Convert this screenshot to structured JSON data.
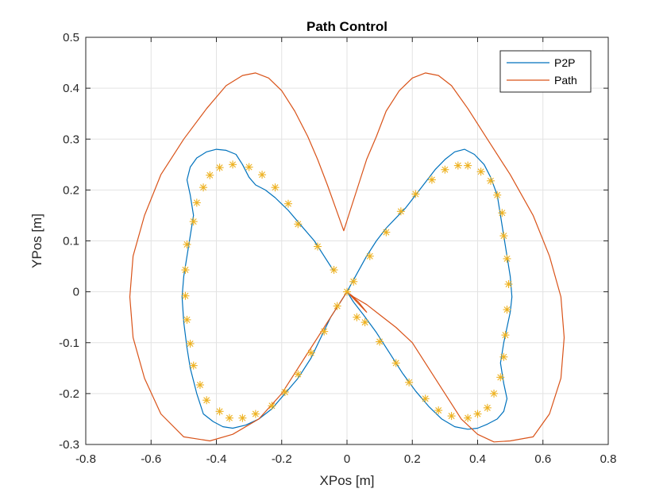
{
  "chart_data": {
    "type": "line",
    "title": "Path Control",
    "xlabel": "XPos [m]",
    "ylabel": "YPos [m]",
    "xlim": [
      -0.8,
      0.8
    ],
    "ylim": [
      -0.3,
      0.5
    ],
    "xticks": [
      -0.8,
      -0.6,
      -0.4,
      -0.2,
      0,
      0.2,
      0.4,
      0.6,
      0.8
    ],
    "yticks": [
      -0.3,
      -0.2,
      -0.1,
      0,
      0.1,
      0.2,
      0.3,
      0.4,
      0.5
    ],
    "xtick_labels": [
      "-0.8",
      "-0.6",
      "-0.4",
      "-0.2",
      "0",
      "0.2",
      "0.4",
      "0.6",
      "0.8"
    ],
    "ytick_labels": [
      "-0.3",
      "-0.2",
      "-0.1",
      "0",
      "0.1",
      "0.2",
      "0.3",
      "0.4",
      "0.5"
    ],
    "grid": true,
    "legend_position": "top-right",
    "series": [
      {
        "name": "P2P",
        "color": "#0072BD",
        "x": [
          0.0,
          0.03,
          0.06,
          0.09,
          0.12,
          0.15,
          0.18,
          0.21,
          0.24,
          0.27,
          0.3,
          0.33,
          0.36,
          0.39,
          0.42,
          0.44,
          0.46,
          0.47,
          0.48,
          0.49,
          0.5,
          0.505,
          0.5,
          0.49,
          0.48,
          0.47,
          0.48,
          0.49,
          0.48,
          0.46,
          0.43,
          0.4,
          0.37,
          0.33,
          0.29,
          0.25,
          0.21,
          0.17,
          0.13,
          0.09,
          0.05,
          0.02,
          0.0,
          -0.02,
          -0.05,
          -0.08,
          -0.11,
          -0.15,
          -0.19,
          -0.23,
          -0.27,
          -0.31,
          -0.35,
          -0.38,
          -0.41,
          -0.44,
          -0.46,
          -0.48,
          -0.49,
          -0.5,
          -0.505,
          -0.5,
          -0.49,
          -0.48,
          -0.47,
          -0.48,
          -0.49,
          -0.48,
          -0.46,
          -0.43,
          -0.4,
          -0.37,
          -0.34,
          -0.32,
          -0.3,
          -0.28,
          -0.25,
          -0.22,
          -0.18,
          -0.14,
          -0.1,
          -0.07,
          -0.04
        ],
        "y": [
          0.0,
          0.035,
          0.07,
          0.1,
          0.125,
          0.145,
          0.165,
          0.19,
          0.215,
          0.24,
          0.26,
          0.275,
          0.28,
          0.27,
          0.25,
          0.225,
          0.19,
          0.15,
          0.11,
          0.07,
          0.03,
          -0.01,
          -0.04,
          -0.07,
          -0.1,
          -0.14,
          -0.18,
          -0.21,
          -0.235,
          -0.25,
          -0.26,
          -0.268,
          -0.27,
          -0.265,
          -0.25,
          -0.225,
          -0.195,
          -0.16,
          -0.12,
          -0.08,
          -0.045,
          -0.02,
          0.0,
          -0.02,
          -0.05,
          -0.09,
          -0.13,
          -0.17,
          -0.2,
          -0.23,
          -0.25,
          -0.262,
          -0.268,
          -0.265,
          -0.255,
          -0.24,
          -0.2,
          -0.15,
          -0.11,
          -0.06,
          -0.01,
          0.03,
          0.07,
          0.11,
          0.15,
          0.19,
          0.22,
          0.245,
          0.263,
          0.275,
          0.28,
          0.278,
          0.27,
          0.25,
          0.225,
          0.21,
          0.2,
          0.185,
          0.16,
          0.13,
          0.1,
          0.07,
          0.04
        ]
      },
      {
        "name": "Path",
        "color": "#D95319",
        "x": [
          0.0,
          0.035,
          0.06,
          0.0,
          -0.06,
          -0.13,
          -0.2,
          -0.27,
          -0.35,
          -0.42,
          -0.5,
          -0.57,
          -0.62,
          -0.655,
          -0.665,
          -0.655,
          -0.62,
          -0.57,
          -0.5,
          -0.43,
          -0.37,
          -0.32,
          -0.28,
          -0.24,
          -0.2,
          -0.16,
          -0.12,
          -0.09,
          -0.06,
          -0.035,
          -0.01,
          0.01,
          0.035,
          0.06,
          0.09,
          0.12,
          0.16,
          0.2,
          0.24,
          0.28,
          0.32,
          0.37,
          0.43,
          0.5,
          0.57,
          0.62,
          0.655,
          0.665,
          0.655,
          0.62,
          0.57,
          0.5,
          0.45,
          0.4,
          0.35,
          0.3,
          0.25,
          0.2,
          0.15,
          0.1,
          0.06,
          0.02,
          0.0
        ],
        "y": [
          0.0,
          -0.02,
          -0.04,
          0.0,
          -0.06,
          -0.13,
          -0.2,
          -0.25,
          -0.28,
          -0.293,
          -0.285,
          -0.24,
          -0.17,
          -0.09,
          -0.01,
          0.07,
          0.15,
          0.23,
          0.3,
          0.36,
          0.405,
          0.425,
          0.43,
          0.42,
          0.395,
          0.355,
          0.305,
          0.26,
          0.21,
          0.165,
          0.12,
          0.16,
          0.21,
          0.26,
          0.305,
          0.355,
          0.395,
          0.42,
          0.43,
          0.425,
          0.405,
          0.36,
          0.3,
          0.23,
          0.15,
          0.07,
          -0.01,
          -0.09,
          -0.17,
          -0.24,
          -0.285,
          -0.293,
          -0.295,
          -0.28,
          -0.25,
          -0.2,
          -0.15,
          -0.1,
          -0.07,
          -0.045,
          -0.025,
          -0.01,
          0.0
        ]
      },
      {
        "name": "",
        "color": "#EDB120",
        "marker": "*",
        "x": [
          0.0,
          0.02,
          0.07,
          0.12,
          0.165,
          0.21,
          0.26,
          0.3,
          0.34,
          0.37,
          0.41,
          0.44,
          0.46,
          0.475,
          0.48,
          0.49,
          0.495,
          0.49,
          0.485,
          0.48,
          0.47,
          0.45,
          0.43,
          0.4,
          0.37,
          0.32,
          0.28,
          0.24,
          0.19,
          0.15,
          0.1,
          0.055,
          0.03,
          -0.03,
          -0.07,
          -0.11,
          -0.15,
          -0.19,
          -0.23,
          -0.28,
          -0.32,
          -0.36,
          -0.39,
          -0.43,
          -0.45,
          -0.47,
          -0.48,
          -0.49,
          -0.495,
          -0.495,
          -0.49,
          -0.47,
          -0.46,
          -0.44,
          -0.42,
          -0.39,
          -0.35,
          -0.3,
          -0.26,
          -0.22,
          -0.18,
          -0.15,
          -0.09,
          -0.04
        ],
        "y": [
          0.0,
          0.02,
          0.07,
          0.117,
          0.158,
          0.192,
          0.22,
          0.24,
          0.248,
          0.248,
          0.236,
          0.218,
          0.19,
          0.155,
          0.11,
          0.065,
          0.015,
          -0.035,
          -0.085,
          -0.128,
          -0.168,
          -0.2,
          -0.228,
          -0.24,
          -0.248,
          -0.244,
          -0.233,
          -0.21,
          -0.178,
          -0.14,
          -0.098,
          -0.06,
          -0.05,
          -0.028,
          -0.078,
          -0.12,
          -0.162,
          -0.197,
          -0.224,
          -0.24,
          -0.248,
          -0.248,
          -0.235,
          -0.213,
          -0.183,
          -0.145,
          -0.102,
          -0.055,
          -0.008,
          0.043,
          0.093,
          0.138,
          0.175,
          0.205,
          0.229,
          0.244,
          0.25,
          0.245,
          0.23,
          0.205,
          0.173,
          0.133,
          0.089,
          0.043
        ]
      }
    ]
  }
}
